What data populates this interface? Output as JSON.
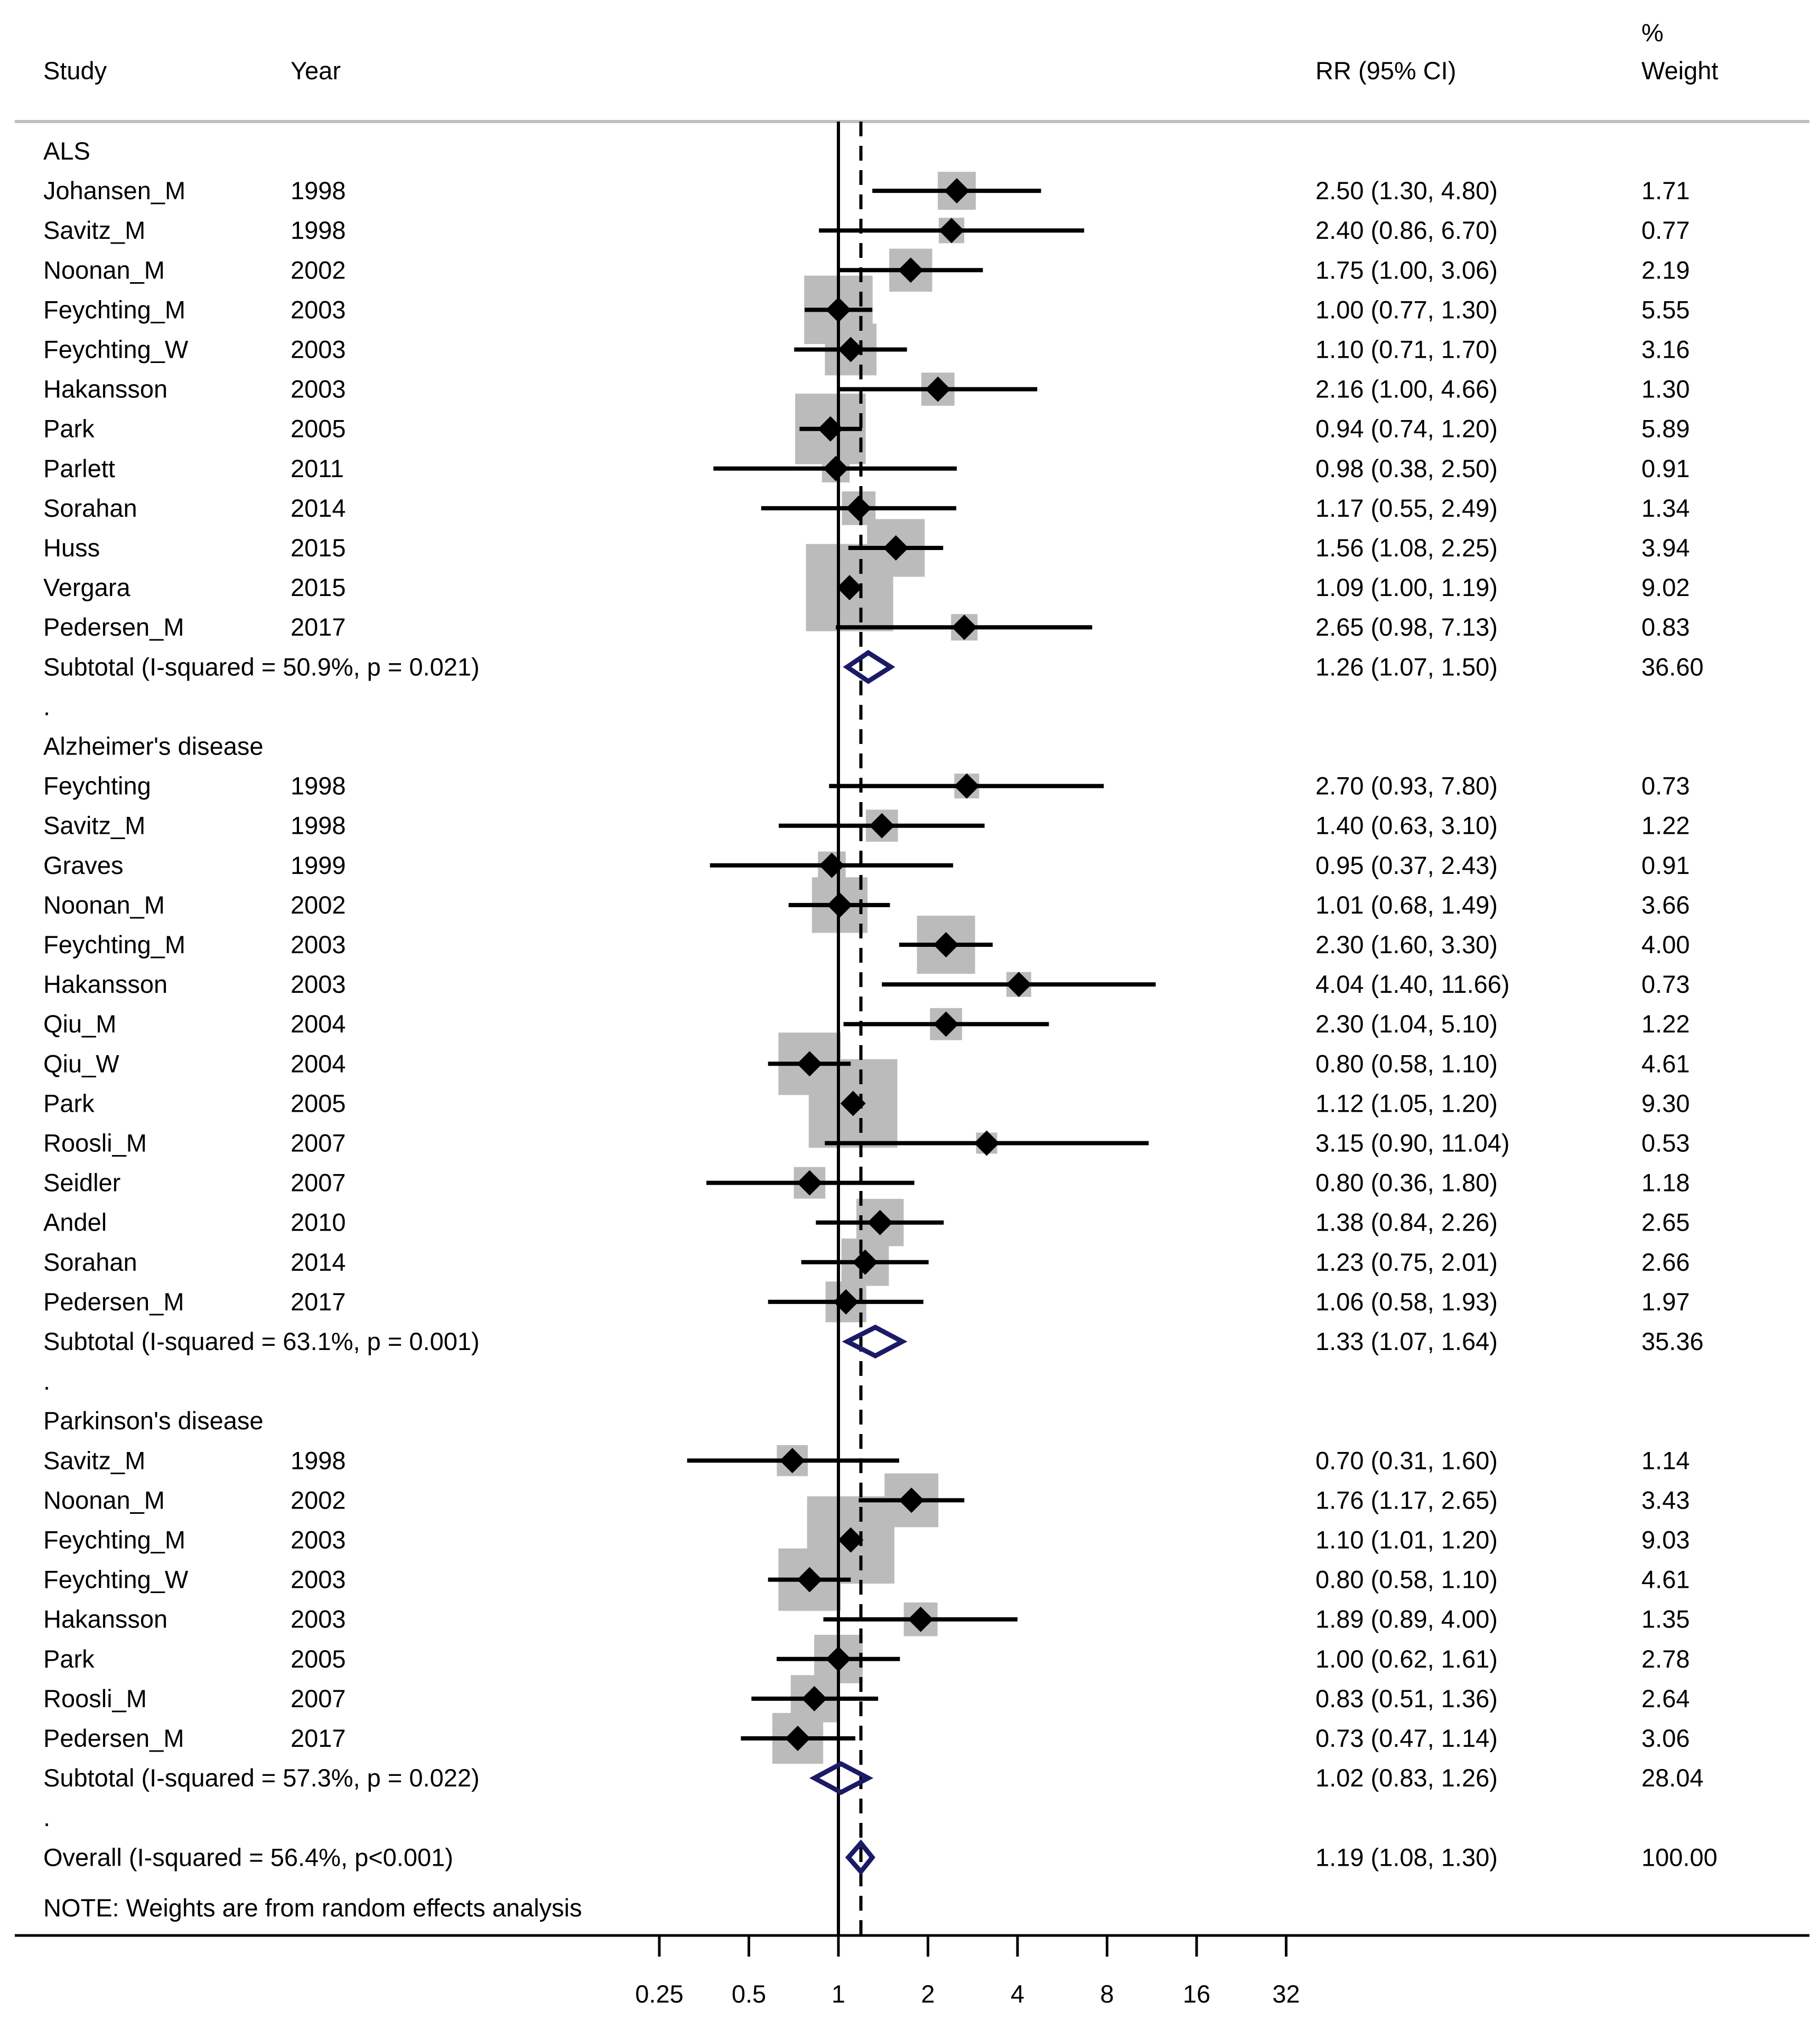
{
  "chart_data": {
    "type": "forest",
    "headers": {
      "study": "Study",
      "year": "Year",
      "rr": "RR (95% CI)",
      "weight_line1": "%",
      "weight_line2": "Weight"
    },
    "x_scale": "log2",
    "xlim": [
      0.25,
      32
    ],
    "xticks": [
      {
        "value": 0.25,
        "label": "0.25"
      },
      {
        "value": 0.5,
        "label": "0.5"
      },
      {
        "value": 1,
        "label": "1"
      },
      {
        "value": 2,
        "label": "2"
      },
      {
        "value": 4,
        "label": "4"
      },
      {
        "value": 8,
        "label": "8"
      },
      {
        "value": 16,
        "label": "16"
      },
      {
        "value": 32,
        "label": "32"
      }
    ],
    "null_line": 1,
    "overall_line": 1.19,
    "note": "NOTE: Weights are from random effects analysis",
    "rows": [
      {
        "kind": "header",
        "label": "ALS"
      },
      {
        "kind": "study",
        "study": "Johansen_M",
        "year": "1998",
        "rr": 2.5,
        "lo": 1.3,
        "hi": 4.8,
        "ci_text": "2.50 (1.30, 4.80)",
        "weight": "1.71"
      },
      {
        "kind": "study",
        "study": "Savitz_M",
        "year": "1998",
        "rr": 2.4,
        "lo": 0.86,
        "hi": 6.7,
        "ci_text": "2.40 (0.86, 6.70)",
        "weight": "0.77"
      },
      {
        "kind": "study",
        "study": "Noonan_M",
        "year": "2002",
        "rr": 1.75,
        "lo": 1.0,
        "hi": 3.06,
        "ci_text": "1.75 (1.00, 3.06)",
        "weight": "2.19"
      },
      {
        "kind": "study",
        "study": "Feychting_M",
        "year": "2003",
        "rr": 1.0,
        "lo": 0.77,
        "hi": 1.3,
        "ci_text": "1.00 (0.77, 1.30)",
        "weight": "5.55"
      },
      {
        "kind": "study",
        "study": "Feychting_W",
        "year": "2003",
        "rr": 1.1,
        "lo": 0.71,
        "hi": 1.7,
        "ci_text": "1.10 (0.71, 1.70)",
        "weight": "3.16"
      },
      {
        "kind": "study",
        "study": "Hakansson",
        "year": "2003",
        "rr": 2.16,
        "lo": 1.0,
        "hi": 4.66,
        "ci_text": "2.16 (1.00, 4.66)",
        "weight": "1.30"
      },
      {
        "kind": "study",
        "study": "Park",
        "year": "2005",
        "rr": 0.94,
        "lo": 0.74,
        "hi": 1.2,
        "ci_text": "0.94 (0.74, 1.20)",
        "weight": "5.89"
      },
      {
        "kind": "study",
        "study": "Parlett",
        "year": "2011",
        "rr": 0.98,
        "lo": 0.38,
        "hi": 2.5,
        "ci_text": "0.98 (0.38, 2.50)",
        "weight": "0.91"
      },
      {
        "kind": "study",
        "study": "Sorahan",
        "year": "2014",
        "rr": 1.17,
        "lo": 0.55,
        "hi": 2.49,
        "ci_text": "1.17 (0.55, 2.49)",
        "weight": "1.34"
      },
      {
        "kind": "study",
        "study": "Huss",
        "year": "2015",
        "rr": 1.56,
        "lo": 1.08,
        "hi": 2.25,
        "ci_text": "1.56 (1.08, 2.25)",
        "weight": "3.94"
      },
      {
        "kind": "study",
        "study": "Vergara",
        "year": "2015",
        "rr": 1.09,
        "lo": 1.0,
        "hi": 1.19,
        "ci_text": "1.09 (1.00, 1.19)",
        "weight": "9.02"
      },
      {
        "kind": "study",
        "study": "Pedersen_M",
        "year": "2017",
        "rr": 2.65,
        "lo": 0.98,
        "hi": 7.13,
        "ci_text": "2.65 (0.98, 7.13)",
        "weight": "0.83"
      },
      {
        "kind": "subtotal",
        "label": "Subtotal  (I-squared = 50.9%, p = 0.021)",
        "rr": 1.26,
        "lo": 1.07,
        "hi": 1.5,
        "ci_text": "1.26 (1.07, 1.50)",
        "weight": "36.60"
      },
      {
        "kind": "spacer",
        "label": "."
      },
      {
        "kind": "header",
        "label": "Alzheimer's disease"
      },
      {
        "kind": "study",
        "study": "Feychting",
        "year": "1998",
        "rr": 2.7,
        "lo": 0.93,
        "hi": 7.8,
        "ci_text": "2.70 (0.93, 7.80)",
        "weight": "0.73"
      },
      {
        "kind": "study",
        "study": "Savitz_M",
        "year": "1998",
        "rr": 1.4,
        "lo": 0.63,
        "hi": 3.1,
        "ci_text": "1.40 (0.63, 3.10)",
        "weight": "1.22"
      },
      {
        "kind": "study",
        "study": "Graves",
        "year": "1999",
        "rr": 0.95,
        "lo": 0.37,
        "hi": 2.43,
        "ci_text": "0.95 (0.37, 2.43)",
        "weight": "0.91"
      },
      {
        "kind": "study",
        "study": "Noonan_M",
        "year": "2002",
        "rr": 1.01,
        "lo": 0.68,
        "hi": 1.49,
        "ci_text": "1.01 (0.68, 1.49)",
        "weight": "3.66"
      },
      {
        "kind": "study",
        "study": "Feychting_M",
        "year": "2003",
        "rr": 2.3,
        "lo": 1.6,
        "hi": 3.3,
        "ci_text": "2.30 (1.60, 3.30)",
        "weight": "4.00"
      },
      {
        "kind": "study",
        "study": "Hakansson",
        "year": "2003",
        "rr": 4.04,
        "lo": 1.4,
        "hi": 11.66,
        "ci_text": "4.04 (1.40, 11.66)",
        "weight": "0.73"
      },
      {
        "kind": "study",
        "study": "Qiu_M",
        "year": "2004",
        "rr": 2.3,
        "lo": 1.04,
        "hi": 5.1,
        "ci_text": "2.30 (1.04, 5.10)",
        "weight": "1.22"
      },
      {
        "kind": "study",
        "study": "Qiu_W",
        "year": "2004",
        "rr": 0.8,
        "lo": 0.58,
        "hi": 1.1,
        "ci_text": "0.80 (0.58, 1.10)",
        "weight": "4.61"
      },
      {
        "kind": "study",
        "study": "Park",
        "year": "2005",
        "rr": 1.12,
        "lo": 1.05,
        "hi": 1.2,
        "ci_text": "1.12 (1.05, 1.20)",
        "weight": "9.30"
      },
      {
        "kind": "study",
        "study": "Roosli_M",
        "year": "2007",
        "rr": 3.15,
        "lo": 0.9,
        "hi": 11.04,
        "ci_text": "3.15 (0.90, 11.04)",
        "weight": "0.53"
      },
      {
        "kind": "study",
        "study": "Seidler",
        "year": "2007",
        "rr": 0.8,
        "lo": 0.36,
        "hi": 1.8,
        "ci_text": "0.80 (0.36, 1.80)",
        "weight": "1.18"
      },
      {
        "kind": "study",
        "study": "Andel",
        "year": "2010",
        "rr": 1.38,
        "lo": 0.84,
        "hi": 2.26,
        "ci_text": "1.38 (0.84, 2.26)",
        "weight": "2.65"
      },
      {
        "kind": "study",
        "study": "Sorahan",
        "year": "2014",
        "rr": 1.23,
        "lo": 0.75,
        "hi": 2.01,
        "ci_text": "1.23 (0.75, 2.01)",
        "weight": "2.66"
      },
      {
        "kind": "study",
        "study": "Pedersen_M",
        "year": "2017",
        "rr": 1.06,
        "lo": 0.58,
        "hi": 1.93,
        "ci_text": "1.06 (0.58, 1.93)",
        "weight": "1.97"
      },
      {
        "kind": "subtotal",
        "label": "Subtotal  (I-squared = 63.1%, p = 0.001)",
        "rr": 1.33,
        "lo": 1.07,
        "hi": 1.64,
        "ci_text": "1.33 (1.07, 1.64)",
        "weight": "35.36"
      },
      {
        "kind": "spacer",
        "label": "."
      },
      {
        "kind": "header",
        "label": "Parkinson's disease"
      },
      {
        "kind": "study",
        "study": "Savitz_M",
        "year": "1998",
        "rr": 0.7,
        "lo": 0.31,
        "hi": 1.6,
        "ci_text": "0.70 (0.31, 1.60)",
        "weight": "1.14"
      },
      {
        "kind": "study",
        "study": "Noonan_M",
        "year": "2002",
        "rr": 1.76,
        "lo": 1.17,
        "hi": 2.65,
        "ci_text": "1.76 (1.17, 2.65)",
        "weight": "3.43"
      },
      {
        "kind": "study",
        "study": "Feychting_M",
        "year": "2003",
        "rr": 1.1,
        "lo": 1.01,
        "hi": 1.2,
        "ci_text": "1.10 (1.01, 1.20)",
        "weight": "9.03"
      },
      {
        "kind": "study",
        "study": "Feychting_W",
        "year": "2003",
        "rr": 0.8,
        "lo": 0.58,
        "hi": 1.1,
        "ci_text": "0.80 (0.58, 1.10)",
        "weight": "4.61"
      },
      {
        "kind": "study",
        "study": "Hakansson",
        "year": "2003",
        "rr": 1.89,
        "lo": 0.89,
        "hi": 4.0,
        "ci_text": "1.89 (0.89, 4.00)",
        "weight": "1.35"
      },
      {
        "kind": "study",
        "study": "Park",
        "year": "2005",
        "rr": 1.0,
        "lo": 0.62,
        "hi": 1.61,
        "ci_text": "1.00 (0.62, 1.61)",
        "weight": "2.78"
      },
      {
        "kind": "study",
        "study": "Roosli_M",
        "year": "2007",
        "rr": 0.83,
        "lo": 0.51,
        "hi": 1.36,
        "ci_text": "0.83 (0.51, 1.36)",
        "weight": "2.64"
      },
      {
        "kind": "study",
        "study": "Pedersen_M",
        "year": "2017",
        "rr": 0.73,
        "lo": 0.47,
        "hi": 1.14,
        "ci_text": "0.73 (0.47, 1.14)",
        "weight": "3.06"
      },
      {
        "kind": "subtotal",
        "label": "Subtotal  (I-squared = 57.3%, p = 0.022)",
        "rr": 1.02,
        "lo": 0.83,
        "hi": 1.26,
        "ci_text": "1.02 (0.83, 1.26)",
        "weight": "28.04"
      },
      {
        "kind": "spacer",
        "label": "."
      },
      {
        "kind": "overall",
        "label": "Overall  (I-squared = 56.4%, p<0.001)",
        "rr": 1.19,
        "lo": 1.08,
        "hi": 1.3,
        "ci_text": "1.19 (1.08, 1.30)",
        "weight": "100.00"
      }
    ],
    "colors": {
      "weight_box": "#bbbbbb",
      "point": "#000000",
      "ci_line": "#000000",
      "pooled_diamond": "#1a1a66",
      "header_rule": "#bfbfbf"
    }
  }
}
